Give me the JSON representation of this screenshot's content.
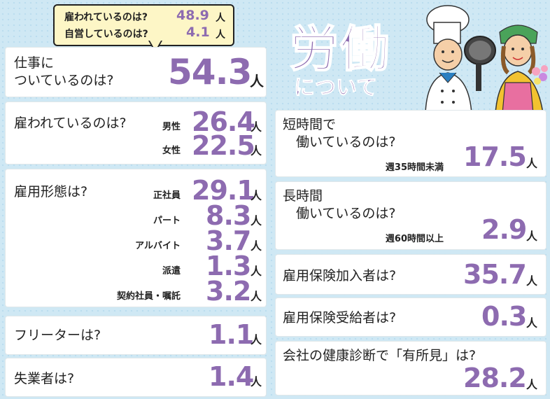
{
  "callout": {
    "row1_label": "雇われているのは?",
    "row1_num": "48.9",
    "row1_unit": "人",
    "row2_label": "自営しているのは?",
    "row2_num": "4.1",
    "row2_unit": "人"
  },
  "title": {
    "main": "労働",
    "sub": "について"
  },
  "left": {
    "working": {
      "q": "仕事に\nついているのは?",
      "num": "54.3",
      "unit": "人"
    },
    "employed": {
      "q": "雇われているのは?",
      "rows": [
        {
          "label": "男性",
          "num": "26.4",
          "unit": "人"
        },
        {
          "label": "女性",
          "num": "22.5",
          "unit": "人"
        }
      ]
    },
    "form": {
      "q": "雇用形態は?",
      "rows": [
        {
          "label": "正社員",
          "num": "29.1",
          "unit": "人"
        },
        {
          "label": "パート",
          "num": "8.3",
          "unit": "人"
        },
        {
          "label": "アルバイト",
          "num": "3.7",
          "unit": "人"
        },
        {
          "label": "派遣",
          "num": "1.3",
          "unit": "人"
        },
        {
          "label": "契約社員・嘱託",
          "num": "3.2",
          "unit": "人"
        }
      ]
    },
    "freeter": {
      "q": "フリーターは?",
      "num": "1.1",
      "unit": "人"
    },
    "unemployed": {
      "q": "失業者は?",
      "num": "1.4",
      "unit": "人"
    }
  },
  "right": {
    "short": {
      "q": "短時間で\n　働いているのは?",
      "note": "週35時間未満",
      "num": "17.5",
      "unit": "人"
    },
    "long": {
      "q": "長時間\n　働いているのは?",
      "note": "週60時間以上",
      "num": "2.9",
      "unit": "人"
    },
    "insured": {
      "q": "雇用保険加入者は?",
      "num": "35.7",
      "unit": "人"
    },
    "benefit": {
      "q": "雇用保険受給者は?",
      "num": "0.3",
      "unit": "人"
    },
    "health": {
      "q": "会社の健康診断で「有所見」は?",
      "num": "28.2",
      "unit": "人"
    }
  }
}
